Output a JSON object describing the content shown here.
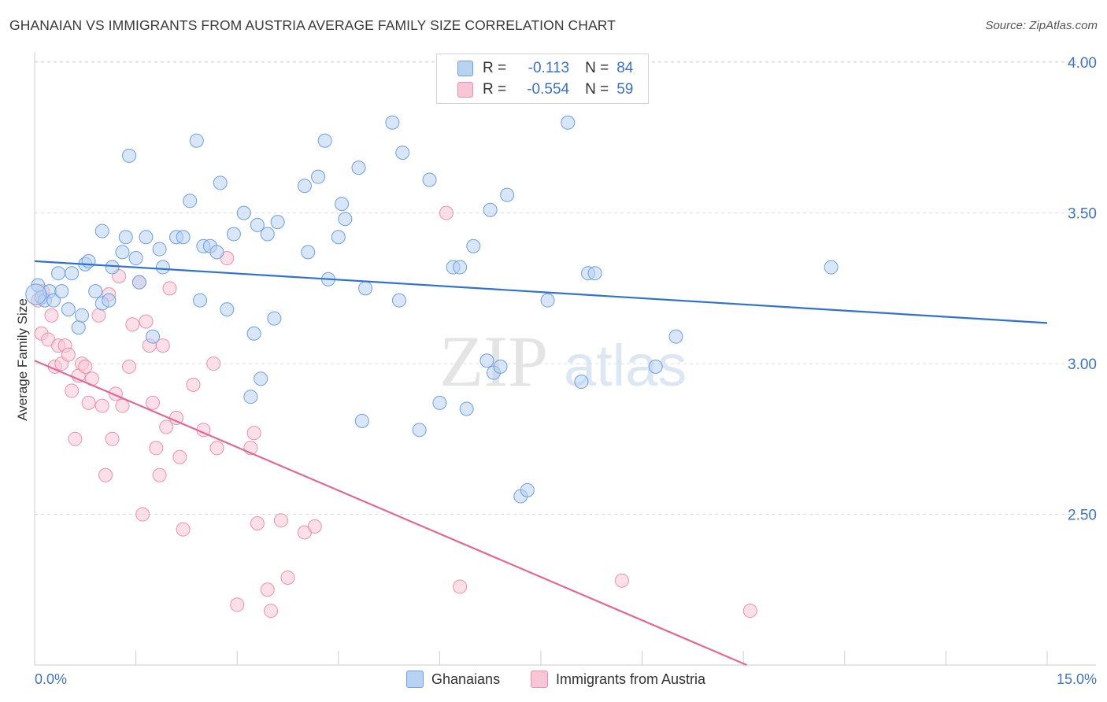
{
  "title": "GHANAIAN VS IMMIGRANTS FROM AUSTRIA AVERAGE FAMILY SIZE CORRELATION CHART",
  "source": "Source: ZipAtlas.com",
  "watermark": {
    "zip": "ZIP",
    "atlas": "atlas"
  },
  "legend": {
    "r_label": "R =",
    "n_label": "N =",
    "rows": [
      {
        "r": "-0.113",
        "n": "84",
        "fill": "#b8d2f2",
        "stroke": "#6d9fe0"
      },
      {
        "r": "-0.554",
        "n": "59",
        "fill": "#f9c6d6",
        "stroke": "#ec8fae"
      }
    ]
  },
  "bottom_legend": [
    {
      "label": "Ghanaians",
      "fill": "#b8d2f2",
      "stroke": "#6d9fe0"
    },
    {
      "label": "Immigrants from Austria",
      "fill": "#f9c6d6",
      "stroke": "#ec8fae"
    }
  ],
  "chart_data": {
    "type": "scatter",
    "title": "GHANAIAN VS IMMIGRANTS FROM AUSTRIA AVERAGE FAMILY SIZE CORRELATION CHART",
    "ylabel": "Average Family Size",
    "xlabel": "",
    "xlim": [
      0,
      15
    ],
    "ylim": [
      2.0,
      4.05
    ],
    "x_tick_labels": [
      "0.0%",
      "15.0%"
    ],
    "y_ticks": [
      2.5,
      3.0,
      3.5,
      4.0
    ],
    "y_tick_labels": [
      "2.50",
      "3.00",
      "3.50",
      "4.00"
    ],
    "grid": "horizontal dashed",
    "colors": {
      "ghanaians": "#6d9fe0",
      "austria": "#ec8fae",
      "blue_line": "#2f73cf",
      "pink_line": "#e06a94",
      "tick_text": "#3f74c6"
    },
    "series": [
      {
        "name": "Ghanaians",
        "trend": {
          "x0": 0.0,
          "y0": 3.34,
          "x1": 15.0,
          "y1": 3.135
        },
        "points": [
          [
            0.05,
            3.26
          ],
          [
            0.1,
            3.22
          ],
          [
            0.15,
            3.21
          ],
          [
            0.22,
            3.24
          ],
          [
            0.28,
            3.21
          ],
          [
            0.35,
            3.3
          ],
          [
            0.4,
            3.24
          ],
          [
            0.5,
            3.18
          ],
          [
            0.55,
            3.3
          ],
          [
            0.65,
            3.12
          ],
          [
            0.7,
            3.16
          ],
          [
            0.75,
            3.33
          ],
          [
            0.8,
            3.34
          ],
          [
            0.9,
            3.24
          ],
          [
            1.0,
            3.2
          ],
          [
            1.1,
            3.21
          ],
          [
            1.15,
            3.32
          ],
          [
            1.0,
            3.44
          ],
          [
            1.3,
            3.37
          ],
          [
            1.35,
            3.42
          ],
          [
            1.4,
            3.69
          ],
          [
            1.5,
            3.35
          ],
          [
            1.55,
            3.27
          ],
          [
            1.65,
            3.42
          ],
          [
            1.75,
            3.09
          ],
          [
            1.85,
            3.38
          ],
          [
            1.9,
            3.32
          ],
          [
            2.1,
            3.42
          ],
          [
            2.2,
            3.42
          ],
          [
            2.3,
            3.54
          ],
          [
            2.4,
            3.74
          ],
          [
            2.45,
            3.21
          ],
          [
            2.5,
            3.39
          ],
          [
            2.6,
            3.39
          ],
          [
            2.7,
            3.37
          ],
          [
            2.75,
            3.6
          ],
          [
            2.85,
            3.18
          ],
          [
            2.95,
            3.43
          ],
          [
            3.1,
            3.5
          ],
          [
            3.2,
            2.89
          ],
          [
            3.25,
            3.1
          ],
          [
            3.3,
            3.46
          ],
          [
            3.35,
            2.95
          ],
          [
            3.45,
            3.43
          ],
          [
            3.55,
            3.15
          ],
          [
            3.6,
            3.47
          ],
          [
            4.0,
            3.59
          ],
          [
            4.05,
            3.37
          ],
          [
            4.2,
            3.62
          ],
          [
            4.3,
            3.74
          ],
          [
            4.35,
            3.28
          ],
          [
            4.5,
            3.42
          ],
          [
            4.55,
            3.53
          ],
          [
            4.6,
            3.48
          ],
          [
            4.8,
            3.65
          ],
          [
            4.85,
            2.81
          ],
          [
            4.9,
            3.25
          ],
          [
            5.3,
            3.8
          ],
          [
            5.4,
            3.21
          ],
          [
            5.45,
            3.7
          ],
          [
            5.7,
            2.78
          ],
          [
            5.85,
            3.61
          ],
          [
            6.0,
            2.87
          ],
          [
            6.2,
            3.32
          ],
          [
            6.3,
            3.32
          ],
          [
            6.4,
            2.85
          ],
          [
            6.5,
            3.39
          ],
          [
            6.7,
            3.01
          ],
          [
            6.75,
            3.51
          ],
          [
            6.8,
            2.97
          ],
          [
            6.9,
            2.99
          ],
          [
            7.0,
            3.56
          ],
          [
            7.2,
            2.56
          ],
          [
            7.3,
            2.58
          ],
          [
            7.45,
            3.96
          ],
          [
            7.6,
            3.21
          ],
          [
            7.9,
            3.8
          ],
          [
            8.1,
            2.94
          ],
          [
            8.2,
            3.3
          ],
          [
            8.3,
            3.3
          ],
          [
            9.2,
            2.99
          ],
          [
            9.5,
            3.09
          ],
          [
            11.8,
            3.32
          ],
          [
            0.02,
            3.23
          ]
        ]
      },
      {
        "name": "Immigrants from Austria",
        "trend": {
          "x0": 0.0,
          "y0": 3.01,
          "x1": 10.55,
          "y1": 2.0
        },
        "points": [
          [
            0.05,
            3.21
          ],
          [
            0.1,
            3.1
          ],
          [
            0.12,
            3.24
          ],
          [
            0.2,
            3.08
          ],
          [
            0.25,
            3.16
          ],
          [
            0.3,
            2.99
          ],
          [
            0.35,
            3.06
          ],
          [
            0.4,
            3.0
          ],
          [
            0.45,
            3.06
          ],
          [
            0.5,
            3.03
          ],
          [
            0.55,
            2.91
          ],
          [
            0.6,
            2.75
          ],
          [
            0.65,
            2.96
          ],
          [
            0.7,
            3.0
          ],
          [
            0.75,
            2.99
          ],
          [
            0.8,
            2.87
          ],
          [
            0.85,
            2.95
          ],
          [
            0.95,
            3.16
          ],
          [
            1.0,
            2.86
          ],
          [
            1.05,
            2.63
          ],
          [
            1.1,
            3.23
          ],
          [
            1.15,
            2.75
          ],
          [
            1.2,
            2.9
          ],
          [
            1.25,
            3.29
          ],
          [
            1.3,
            2.86
          ],
          [
            1.4,
            2.99
          ],
          [
            1.45,
            3.13
          ],
          [
            1.55,
            3.27
          ],
          [
            1.6,
            2.5
          ],
          [
            1.65,
            3.14
          ],
          [
            1.7,
            3.06
          ],
          [
            1.75,
            2.87
          ],
          [
            1.8,
            2.72
          ],
          [
            1.85,
            2.63
          ],
          [
            1.9,
            3.06
          ],
          [
            1.95,
            2.79
          ],
          [
            2.0,
            3.25
          ],
          [
            2.1,
            2.82
          ],
          [
            2.15,
            2.69
          ],
          [
            2.2,
            2.45
          ],
          [
            2.35,
            2.93
          ],
          [
            2.5,
            2.78
          ],
          [
            2.65,
            3.0
          ],
          [
            2.7,
            2.72
          ],
          [
            2.85,
            3.35
          ],
          [
            3.0,
            2.2
          ],
          [
            3.2,
            2.72
          ],
          [
            3.25,
            2.77
          ],
          [
            3.3,
            2.47
          ],
          [
            3.45,
            2.25
          ],
          [
            3.5,
            2.18
          ],
          [
            3.65,
            2.48
          ],
          [
            3.75,
            2.29
          ],
          [
            4.0,
            2.44
          ],
          [
            4.15,
            2.46
          ],
          [
            6.1,
            3.5
          ],
          [
            6.3,
            2.26
          ],
          [
            8.7,
            2.28
          ],
          [
            10.6,
            2.18
          ]
        ]
      }
    ]
  }
}
